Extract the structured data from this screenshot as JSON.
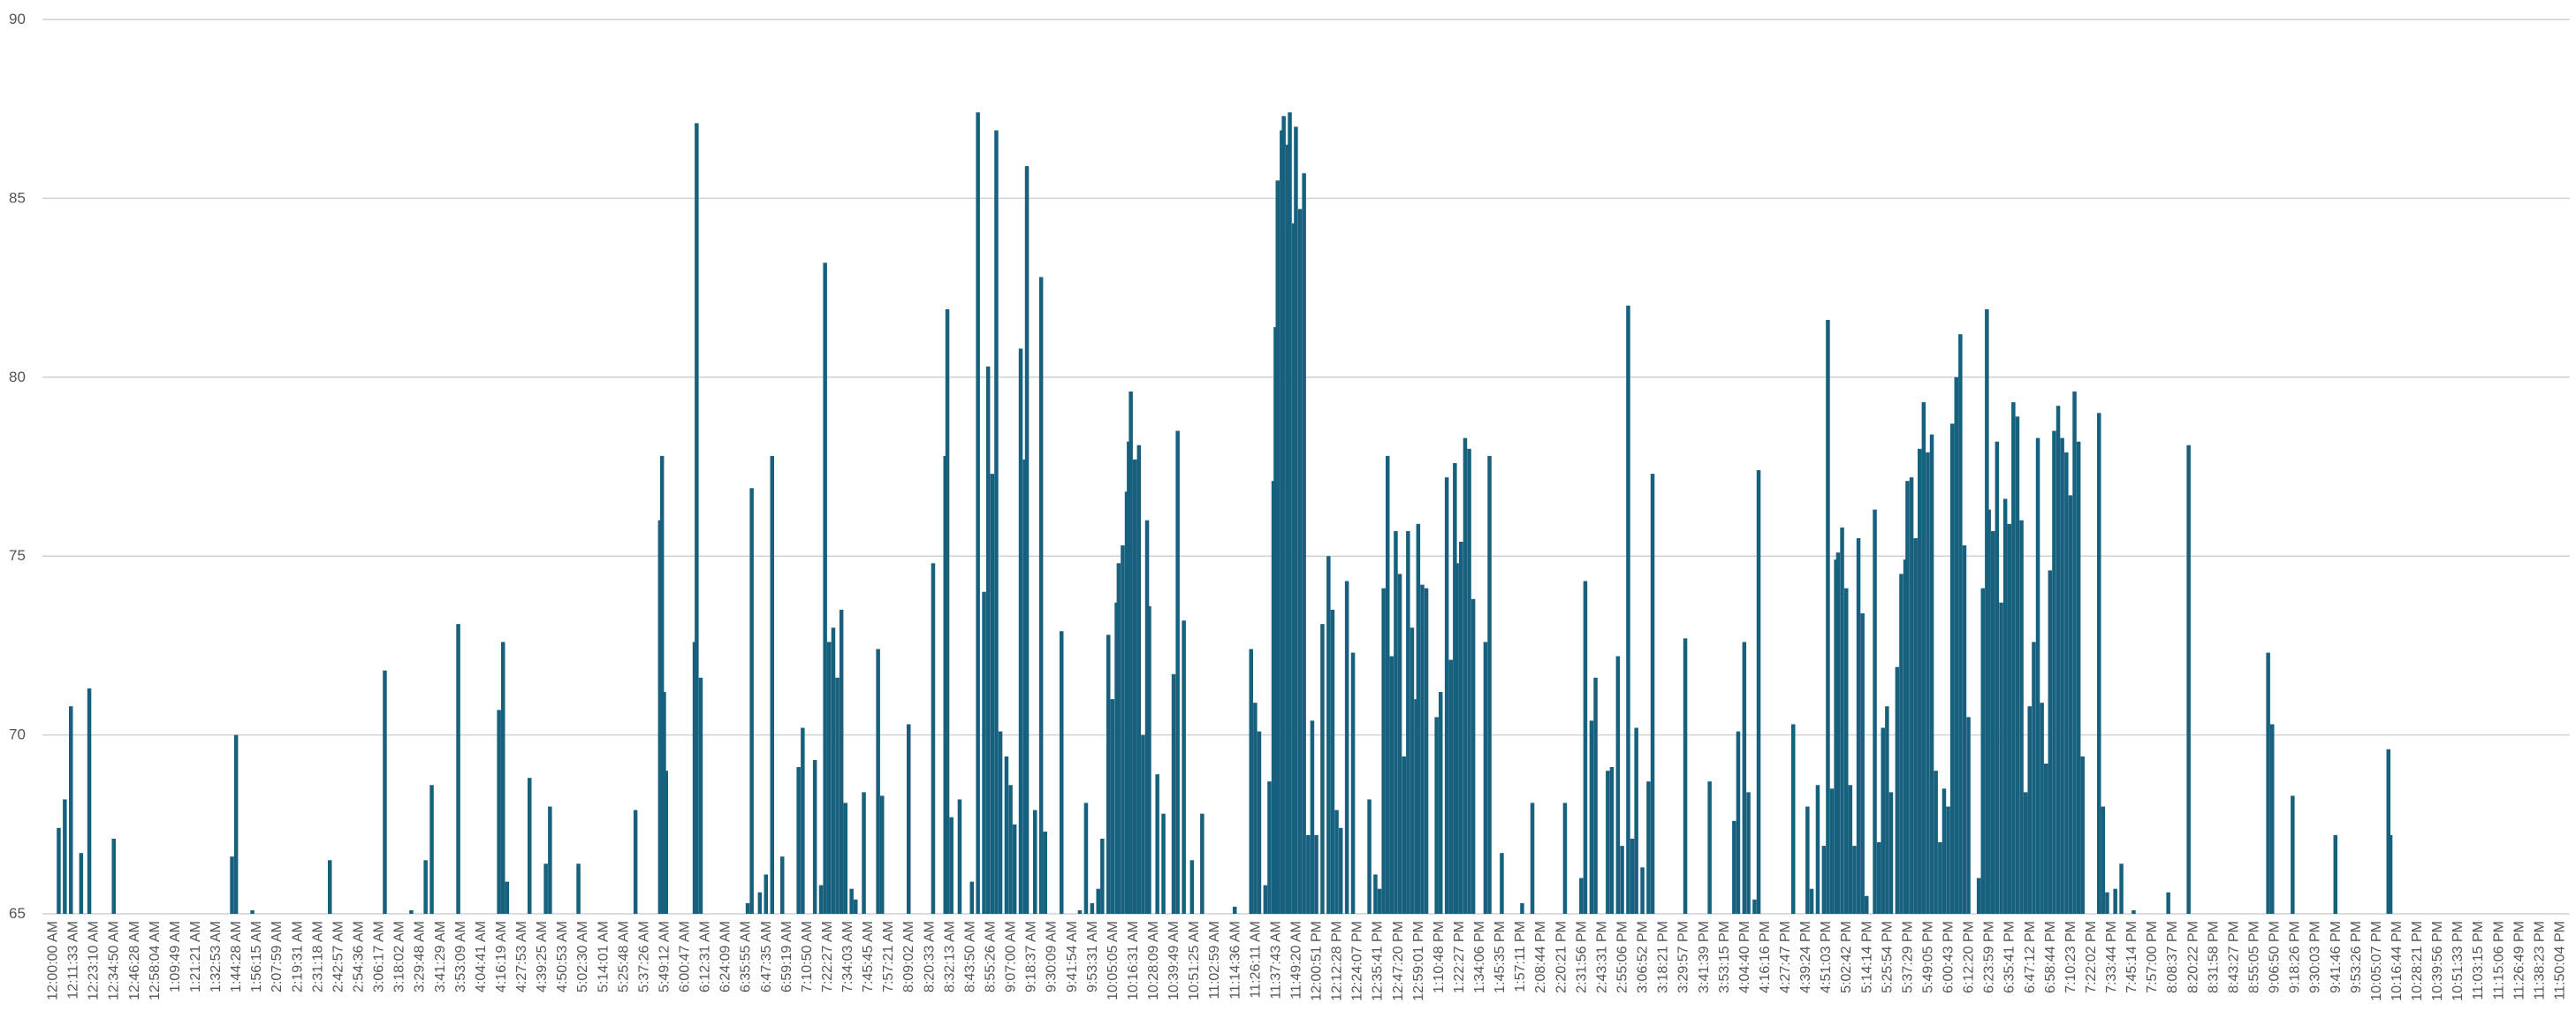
{
  "chart_data": {
    "type": "bar",
    "title": "",
    "xlabel": "",
    "ylabel": "",
    "ylim": [
      65,
      90
    ],
    "y_ticks": [
      "65",
      "70",
      "75",
      "80",
      "85",
      "90"
    ],
    "grid": true,
    "legend": "none",
    "bar_color": "#17607e",
    "x_tick_labels": [
      "12:00:00 AM",
      "12:11:33 AM",
      "12:23:10 AM",
      "12:34:50 AM",
      "12:46:28 AM",
      "12:58:04 AM",
      "1:09:49 AM",
      "1:21:21 AM",
      "1:32:53 AM",
      "1:44:28 AM",
      "1:56:15 AM",
      "2:07:59 AM",
      "2:19:31 AM",
      "2:31:18 AM",
      "2:42:57 AM",
      "2:54:36 AM",
      "3:06:17 AM",
      "3:18:02 AM",
      "3:29:48 AM",
      "3:41:29 AM",
      "3:53:09 AM",
      "4:04:41 AM",
      "4:16:19 AM",
      "4:27:53 AM",
      "4:39:25 AM",
      "4:50:53 AM",
      "5:02:30 AM",
      "5:14:01 AM",
      "5:25:48 AM",
      "5:37:26 AM",
      "5:49:12 AM",
      "6:00:47 AM",
      "6:12:31 AM",
      "6:24:09 AM",
      "6:35:55 AM",
      "6:47:35 AM",
      "6:59:19 AM",
      "7:10:50 AM",
      "7:22:27 AM",
      "7:34:03 AM",
      "7:45:45 AM",
      "7:57:21 AM",
      "8:09:02 AM",
      "8:20:33 AM",
      "8:32:13 AM",
      "8:43:50 AM",
      "8:55:26 AM",
      "9:07:00 AM",
      "9:18:37 AM",
      "9:30:09 AM",
      "9:41:54 AM",
      "9:53:31 AM",
      "10:05:05 AM",
      "10:16:31 AM",
      "10:28:09 AM",
      "10:39:49 AM",
      "10:51:25 AM",
      "11:02:59 AM",
      "11:14:36 AM",
      "11:26:11 AM",
      "11:37:43 AM",
      "11:49:20 AM",
      "12:00:51 PM",
      "12:12:28 PM",
      "12:24:07 PM",
      "12:35:41 PM",
      "12:47:20 PM",
      "12:59:01 PM",
      "1:10:48 PM",
      "1:22:27 PM",
      "1:34:06 PM",
      "1:45:35 PM",
      "1:57:11 PM",
      "2:08:44 PM",
      "2:20:21 PM",
      "2:31:56 PM",
      "2:43:31 PM",
      "2:55:06 PM",
      "3:06:52 PM",
      "3:18:21 PM",
      "3:29:57 PM",
      "3:41:39 PM",
      "3:53:15 PM",
      "4:04:40 PM",
      "4:16:16 PM",
      "4:27:47 PM",
      "4:39:24 PM",
      "4:51:03 PM",
      "5:02:42 PM",
      "5:14:14 PM",
      "5:25:54 PM",
      "5:37:29 PM",
      "5:49:05 PM",
      "6:00:43 PM",
      "6:12:20 PM",
      "6:23:59 PM",
      "6:35:41 PM",
      "6:47:12 PM",
      "6:58:44 PM",
      "7:10:23 PM",
      "7:22:02 PM",
      "7:33:44 PM",
      "7:45:14 PM",
      "7:57:00 PM",
      "8:08:37 PM",
      "8:20:22 PM",
      "8:31:58 PM",
      "8:43:27 PM",
      "8:55:05 PM",
      "9:06:50 PM",
      "9:18:26 PM",
      "9:30:03 PM",
      "9:41:46 PM",
      "9:53:26 PM",
      "10:05:07 PM",
      "10:16:44 PM",
      "10:28:21 PM",
      "10:39:56 PM",
      "10:51:33 PM",
      "11:03:15 PM",
      "11:15:06 PM",
      "11:26:49 PM",
      "11:38:23 PM",
      "11:50:04 PM"
    ],
    "bars": [
      {
        "t": 0.3,
        "v": 67.4
      },
      {
        "t": 0.6,
        "v": 68.2
      },
      {
        "t": 0.9,
        "v": 70.8
      },
      {
        "t": 1.4,
        "v": 66.7
      },
      {
        "t": 1.8,
        "v": 71.3
      },
      {
        "t": 3.0,
        "v": 67.1
      },
      {
        "t": 8.8,
        "v": 66.6
      },
      {
        "t": 9.0,
        "v": 70.0
      },
      {
        "t": 9.8,
        "v": 65.1
      },
      {
        "t": 13.6,
        "v": 66.5
      },
      {
        "t": 16.3,
        "v": 71.8
      },
      {
        "t": 17.6,
        "v": 65.1
      },
      {
        "t": 18.3,
        "v": 66.5
      },
      {
        "t": 18.6,
        "v": 68.6
      },
      {
        "t": 19.9,
        "v": 73.1
      },
      {
        "t": 21.9,
        "v": 70.7
      },
      {
        "t": 22.1,
        "v": 72.6
      },
      {
        "t": 22.3,
        "v": 65.9
      },
      {
        "t": 23.4,
        "v": 68.8
      },
      {
        "t": 24.2,
        "v": 66.4
      },
      {
        "t": 24.4,
        "v": 68.0
      },
      {
        "t": 25.8,
        "v": 66.4
      },
      {
        "t": 28.6,
        "v": 67.9
      },
      {
        "t": 29.8,
        "v": 76.0
      },
      {
        "t": 29.9,
        "v": 77.8
      },
      {
        "t": 30.0,
        "v": 71.2
      },
      {
        "t": 30.1,
        "v": 69.0
      },
      {
        "t": 31.5,
        "v": 72.6
      },
      {
        "t": 31.6,
        "v": 87.1
      },
      {
        "t": 31.8,
        "v": 71.6
      },
      {
        "t": 34.1,
        "v": 65.3
      },
      {
        "t": 34.3,
        "v": 76.9
      },
      {
        "t": 34.7,
        "v": 65.6
      },
      {
        "t": 35.0,
        "v": 66.1
      },
      {
        "t": 35.3,
        "v": 77.8
      },
      {
        "t": 35.8,
        "v": 66.6
      },
      {
        "t": 36.6,
        "v": 69.1
      },
      {
        "t": 36.8,
        "v": 70.2
      },
      {
        "t": 37.4,
        "v": 69.3
      },
      {
        "t": 37.7,
        "v": 65.8
      },
      {
        "t": 37.9,
        "v": 83.2
      },
      {
        "t": 38.1,
        "v": 72.6
      },
      {
        "t": 38.3,
        "v": 73.0
      },
      {
        "t": 38.5,
        "v": 71.6
      },
      {
        "t": 38.7,
        "v": 73.5
      },
      {
        "t": 38.9,
        "v": 68.1
      },
      {
        "t": 39.2,
        "v": 65.7
      },
      {
        "t": 39.4,
        "v": 65.4
      },
      {
        "t": 39.8,
        "v": 68.4
      },
      {
        "t": 40.5,
        "v": 72.4
      },
      {
        "t": 40.7,
        "v": 68.3
      },
      {
        "t": 42.0,
        "v": 70.3
      },
      {
        "t": 43.2,
        "v": 74.8
      },
      {
        "t": 43.8,
        "v": 77.8
      },
      {
        "t": 43.9,
        "v": 81.9
      },
      {
        "t": 44.1,
        "v": 67.7
      },
      {
        "t": 44.5,
        "v": 68.2
      },
      {
        "t": 45.1,
        "v": 65.9
      },
      {
        "t": 45.4,
        "v": 87.4
      },
      {
        "t": 45.7,
        "v": 74.0
      },
      {
        "t": 45.9,
        "v": 80.3
      },
      {
        "t": 46.1,
        "v": 77.3
      },
      {
        "t": 46.3,
        "v": 86.9
      },
      {
        "t": 46.5,
        "v": 70.1
      },
      {
        "t": 46.8,
        "v": 69.4
      },
      {
        "t": 47.0,
        "v": 68.6
      },
      {
        "t": 47.2,
        "v": 67.5
      },
      {
        "t": 47.5,
        "v": 80.8
      },
      {
        "t": 47.7,
        "v": 77.7
      },
      {
        "t": 47.8,
        "v": 85.9
      },
      {
        "t": 48.2,
        "v": 67.9
      },
      {
        "t": 48.5,
        "v": 82.8
      },
      {
        "t": 48.7,
        "v": 67.3
      },
      {
        "t": 49.5,
        "v": 72.9
      },
      {
        "t": 50.4,
        "v": 65.1
      },
      {
        "t": 50.7,
        "v": 68.1
      },
      {
        "t": 51.0,
        "v": 65.3
      },
      {
        "t": 51.3,
        "v": 65.7
      },
      {
        "t": 51.5,
        "v": 67.1
      },
      {
        "t": 51.8,
        "v": 72.8
      },
      {
        "t": 52.0,
        "v": 71.0
      },
      {
        "t": 52.2,
        "v": 73.7
      },
      {
        "t": 52.3,
        "v": 74.8
      },
      {
        "t": 52.5,
        "v": 75.3
      },
      {
        "t": 52.7,
        "v": 76.8
      },
      {
        "t": 52.8,
        "v": 78.2
      },
      {
        "t": 52.9,
        "v": 79.6
      },
      {
        "t": 53.1,
        "v": 77.7
      },
      {
        "t": 53.3,
        "v": 78.1
      },
      {
        "t": 53.5,
        "v": 70.0
      },
      {
        "t": 53.7,
        "v": 76.0
      },
      {
        "t": 53.8,
        "v": 73.6
      },
      {
        "t": 54.2,
        "v": 68.9
      },
      {
        "t": 54.5,
        "v": 67.8
      },
      {
        "t": 55.0,
        "v": 71.7
      },
      {
        "t": 55.2,
        "v": 78.5
      },
      {
        "t": 55.5,
        "v": 73.2
      },
      {
        "t": 55.9,
        "v": 66.5
      },
      {
        "t": 56.4,
        "v": 67.8
      },
      {
        "t": 58.0,
        "v": 65.2
      },
      {
        "t": 58.8,
        "v": 72.4
      },
      {
        "t": 59.0,
        "v": 70.9
      },
      {
        "t": 59.2,
        "v": 70.1
      },
      {
        "t": 59.5,
        "v": 65.8
      },
      {
        "t": 59.7,
        "v": 68.7
      },
      {
        "t": 59.9,
        "v": 77.1
      },
      {
        "t": 60.0,
        "v": 81.4
      },
      {
        "t": 60.1,
        "v": 85.5
      },
      {
        "t": 60.3,
        "v": 86.9
      },
      {
        "t": 60.4,
        "v": 87.3
      },
      {
        "t": 60.6,
        "v": 86.5
      },
      {
        "t": 60.7,
        "v": 87.4
      },
      {
        "t": 60.9,
        "v": 84.3
      },
      {
        "t": 61.0,
        "v": 87.0
      },
      {
        "t": 61.2,
        "v": 84.7
      },
      {
        "t": 61.4,
        "v": 85.7
      },
      {
        "t": 61.6,
        "v": 67.2
      },
      {
        "t": 61.8,
        "v": 70.4
      },
      {
        "t": 62.0,
        "v": 67.2
      },
      {
        "t": 62.3,
        "v": 73.1
      },
      {
        "t": 62.6,
        "v": 75.0
      },
      {
        "t": 62.8,
        "v": 73.5
      },
      {
        "t": 63.0,
        "v": 67.9
      },
      {
        "t": 63.2,
        "v": 67.4
      },
      {
        "t": 63.5,
        "v": 74.3
      },
      {
        "t": 63.8,
        "v": 72.3
      },
      {
        "t": 64.6,
        "v": 68.2
      },
      {
        "t": 64.9,
        "v": 66.1
      },
      {
        "t": 65.1,
        "v": 65.7
      },
      {
        "t": 65.3,
        "v": 74.1
      },
      {
        "t": 65.5,
        "v": 77.8
      },
      {
        "t": 65.7,
        "v": 72.2
      },
      {
        "t": 65.9,
        "v": 75.7
      },
      {
        "t": 66.1,
        "v": 74.5
      },
      {
        "t": 66.3,
        "v": 69.4
      },
      {
        "t": 66.5,
        "v": 75.7
      },
      {
        "t": 66.7,
        "v": 73.0
      },
      {
        "t": 66.9,
        "v": 71.0
      },
      {
        "t": 67.0,
        "v": 75.9
      },
      {
        "t": 67.2,
        "v": 74.2
      },
      {
        "t": 67.4,
        "v": 74.1
      },
      {
        "t": 67.9,
        "v": 70.5
      },
      {
        "t": 68.1,
        "v": 71.2
      },
      {
        "t": 68.4,
        "v": 77.2
      },
      {
        "t": 68.6,
        "v": 72.1
      },
      {
        "t": 68.8,
        "v": 77.6
      },
      {
        "t": 68.9,
        "v": 74.8
      },
      {
        "t": 69.1,
        "v": 75.4
      },
      {
        "t": 69.3,
        "v": 78.3
      },
      {
        "t": 69.5,
        "v": 78.0
      },
      {
        "t": 69.7,
        "v": 73.8
      },
      {
        "t": 70.3,
        "v": 72.6
      },
      {
        "t": 70.5,
        "v": 77.8
      },
      {
        "t": 71.1,
        "v": 66.7
      },
      {
        "t": 72.1,
        "v": 65.3
      },
      {
        "t": 72.6,
        "v": 68.1
      },
      {
        "t": 74.2,
        "v": 68.1
      },
      {
        "t": 75.0,
        "v": 66.0
      },
      {
        "t": 75.2,
        "v": 74.3
      },
      {
        "t": 75.5,
        "v": 70.4
      },
      {
        "t": 75.7,
        "v": 71.6
      },
      {
        "t": 76.3,
        "v": 69.0
      },
      {
        "t": 76.5,
        "v": 69.1
      },
      {
        "t": 76.8,
        "v": 72.2
      },
      {
        "t": 77.0,
        "v": 66.9
      },
      {
        "t": 77.3,
        "v": 82.0
      },
      {
        "t": 77.5,
        "v": 67.1
      },
      {
        "t": 77.7,
        "v": 70.2
      },
      {
        "t": 78.0,
        "v": 66.3
      },
      {
        "t": 78.3,
        "v": 68.7
      },
      {
        "t": 78.5,
        "v": 77.3
      },
      {
        "t": 80.1,
        "v": 72.7
      },
      {
        "t": 81.3,
        "v": 68.7
      },
      {
        "t": 82.5,
        "v": 67.6
      },
      {
        "t": 82.7,
        "v": 70.1
      },
      {
        "t": 83.0,
        "v": 72.6
      },
      {
        "t": 83.2,
        "v": 68.4
      },
      {
        "t": 83.5,
        "v": 65.4
      },
      {
        "t": 83.7,
        "v": 77.4
      },
      {
        "t": 85.4,
        "v": 70.3
      },
      {
        "t": 86.1,
        "v": 68.0
      },
      {
        "t": 86.3,
        "v": 65.7
      },
      {
        "t": 86.6,
        "v": 68.6
      },
      {
        "t": 86.9,
        "v": 66.9
      },
      {
        "t": 87.1,
        "v": 81.6
      },
      {
        "t": 87.3,
        "v": 68.5
      },
      {
        "t": 87.5,
        "v": 74.9
      },
      {
        "t": 87.6,
        "v": 75.1
      },
      {
        "t": 87.8,
        "v": 75.8
      },
      {
        "t": 88.0,
        "v": 74.1
      },
      {
        "t": 88.2,
        "v": 68.6
      },
      {
        "t": 88.4,
        "v": 66.9
      },
      {
        "t": 88.6,
        "v": 75.5
      },
      {
        "t": 88.8,
        "v": 73.4
      },
      {
        "t": 89.0,
        "v": 65.5
      },
      {
        "t": 89.4,
        "v": 76.3
      },
      {
        "t": 89.6,
        "v": 67.0
      },
      {
        "t": 89.8,
        "v": 70.2
      },
      {
        "t": 90.0,
        "v": 70.8
      },
      {
        "t": 90.2,
        "v": 68.4
      },
      {
        "t": 90.5,
        "v": 71.9
      },
      {
        "t": 90.7,
        "v": 74.5
      },
      {
        "t": 90.9,
        "v": 74.9
      },
      {
        "t": 91.0,
        "v": 77.1
      },
      {
        "t": 91.2,
        "v": 77.2
      },
      {
        "t": 91.4,
        "v": 75.5
      },
      {
        "t": 91.6,
        "v": 78.0
      },
      {
        "t": 91.8,
        "v": 79.3
      },
      {
        "t": 92.0,
        "v": 77.9
      },
      {
        "t": 92.2,
        "v": 78.4
      },
      {
        "t": 92.4,
        "v": 69.0
      },
      {
        "t": 92.6,
        "v": 67.0
      },
      {
        "t": 92.8,
        "v": 68.5
      },
      {
        "t": 93.0,
        "v": 68.0
      },
      {
        "t": 93.2,
        "v": 78.7
      },
      {
        "t": 93.4,
        "v": 80.0
      },
      {
        "t": 93.6,
        "v": 81.2
      },
      {
        "t": 93.8,
        "v": 75.3
      },
      {
        "t": 94.0,
        "v": 70.5
      },
      {
        "t": 94.5,
        "v": 66.0
      },
      {
        "t": 94.7,
        "v": 74.1
      },
      {
        "t": 94.9,
        "v": 81.9
      },
      {
        "t": 95.0,
        "v": 76.3
      },
      {
        "t": 95.2,
        "v": 75.7
      },
      {
        "t": 95.4,
        "v": 78.2
      },
      {
        "t": 95.6,
        "v": 73.7
      },
      {
        "t": 95.8,
        "v": 76.6
      },
      {
        "t": 96.0,
        "v": 75.9
      },
      {
        "t": 96.2,
        "v": 79.3
      },
      {
        "t": 96.4,
        "v": 78.9
      },
      {
        "t": 96.6,
        "v": 76.0
      },
      {
        "t": 96.8,
        "v": 68.4
      },
      {
        "t": 97.0,
        "v": 70.8
      },
      {
        "t": 97.2,
        "v": 72.6
      },
      {
        "t": 97.4,
        "v": 78.3
      },
      {
        "t": 97.6,
        "v": 70.9
      },
      {
        "t": 97.8,
        "v": 69.2
      },
      {
        "t": 98.0,
        "v": 74.6
      },
      {
        "t": 98.2,
        "v": 78.5
      },
      {
        "t": 98.4,
        "v": 79.2
      },
      {
        "t": 98.6,
        "v": 78.3
      },
      {
        "t": 98.8,
        "v": 77.9
      },
      {
        "t": 99.0,
        "v": 76.7
      },
      {
        "t": 99.2,
        "v": 79.6
      },
      {
        "t": 99.4,
        "v": 78.2
      },
      {
        "t": 99.6,
        "v": 69.4
      },
      {
        "t": 100.4,
        "v": 79.0
      },
      {
        "t": 100.6,
        "v": 68.0
      },
      {
        "t": 100.8,
        "v": 65.6
      },
      {
        "t": 101.2,
        "v": 65.7
      },
      {
        "t": 101.5,
        "v": 66.4
      },
      {
        "t": 102.1,
        "v": 65.1
      },
      {
        "t": 103.8,
        "v": 65.6
      },
      {
        "t": 104.8,
        "v": 78.1
      },
      {
        "t": 108.7,
        "v": 72.3
      },
      {
        "t": 108.9,
        "v": 70.3
      },
      {
        "t": 109.9,
        "v": 68.3
      },
      {
        "t": 112.0,
        "v": 67.2
      },
      {
        "t": 114.6,
        "v": 69.6
      },
      {
        "t": 114.7,
        "v": 67.2
      }
    ]
  }
}
